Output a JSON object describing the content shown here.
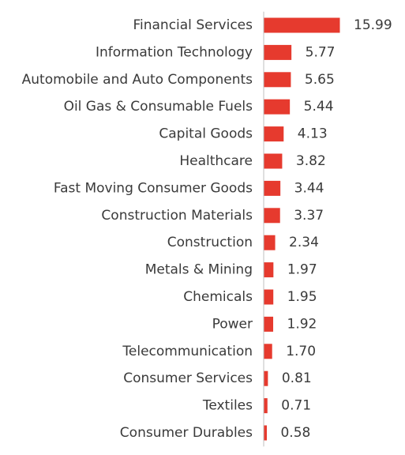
{
  "chart_data": {
    "type": "bar",
    "orientation": "horizontal",
    "categories": [
      "Financial Services",
      "Information Technology",
      "Automobile and Auto Components",
      "Oil Gas & Consumable Fuels",
      "Capital Goods",
      "Healthcare",
      "Fast Moving Consumer Goods",
      "Construction Materials",
      "Construction",
      "Metals & Mining",
      "Chemicals",
      "Power",
      "Telecommunication",
      "Consumer Services",
      "Textiles",
      "Consumer Durables"
    ],
    "values": [
      15.99,
      5.77,
      5.65,
      5.44,
      4.13,
      3.82,
      3.44,
      3.37,
      2.34,
      1.97,
      1.95,
      1.92,
      1.7,
      0.81,
      0.71,
      0.58
    ],
    "value_labels": [
      "15.99",
      "5.77",
      "5.65",
      "5.44",
      "4.13",
      "3.82",
      "3.44",
      "3.37",
      "2.34",
      "1.97",
      "1.95",
      "1.92",
      "1.70",
      "0.81",
      "0.71",
      "0.58"
    ],
    "title": "",
    "xlabel": "",
    "ylabel": "",
    "xlim": [
      0,
      15.99
    ],
    "grid": false,
    "legend": "none",
    "colors": {
      "bar": "#e63a2e",
      "text": "#3a3a3a",
      "axis": "#bfbfbf"
    }
  }
}
